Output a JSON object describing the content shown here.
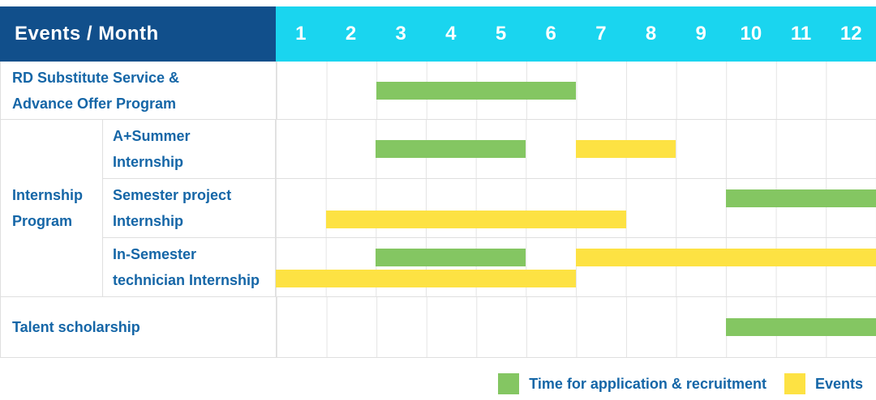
{
  "header": {
    "title": "Events / Month",
    "months": [
      "1",
      "2",
      "3",
      "4",
      "5",
      "6",
      "7",
      "8",
      "9",
      "10",
      "11",
      "12"
    ]
  },
  "group": {
    "label": "Internship\nProgram"
  },
  "colors": {
    "header_bg": "#114F8B",
    "month_bg": "#1AD5EF",
    "green": "#84C662",
    "yellow": "#FDE243",
    "text_blue": "#1566A7",
    "grid_line": "#E4E4E4",
    "row_border": "#DFDFDF"
  },
  "legend": {
    "items": [
      {
        "key": "application",
        "color": "green",
        "label": "Time for application & recruitment"
      },
      {
        "key": "events",
        "color": "yellow",
        "label": "Events"
      }
    ]
  },
  "chart_data": {
    "type": "bar",
    "variant": "gantt",
    "title": "Events / Month",
    "xlabel": "Month",
    "x_ticks": [
      "1",
      "2",
      "3",
      "4",
      "5",
      "6",
      "7",
      "8",
      "9",
      "10",
      "11",
      "12"
    ],
    "x_range": [
      1,
      12
    ],
    "legend_position": "bottom-right",
    "series_legend": [
      "Time for application & recruitment",
      "Events"
    ],
    "rows": [
      {
        "label": "RD Substitute Service &\nAdvance Offer Program",
        "group": null,
        "bars": [
          {
            "series": "Time for application & recruitment",
            "color": "green",
            "start_month": 3,
            "end_month": 6,
            "lane": "center"
          }
        ]
      },
      {
        "label": "A+Summer\nInternship",
        "group": "Internship Program",
        "bars": [
          {
            "series": "Time for application & recruitment",
            "color": "green",
            "start_month": 3,
            "end_month": 5,
            "lane": "center"
          },
          {
            "series": "Events",
            "color": "yellow",
            "start_month": 7,
            "end_month": 8,
            "lane": "center"
          }
        ]
      },
      {
        "label": "Semester project\nInternship",
        "group": "Internship Program",
        "bars": [
          {
            "series": "Time for application & recruitment",
            "color": "green",
            "start_month": 10,
            "end_month": 12,
            "lane": "top"
          },
          {
            "series": "Events",
            "color": "yellow",
            "start_month": 2,
            "end_month": 7,
            "lane": "bottom"
          }
        ]
      },
      {
        "label": "In-Semester\ntechnician Internship",
        "group": "Internship Program",
        "bars": [
          {
            "series": "Time for application & recruitment",
            "color": "green",
            "start_month": 3,
            "end_month": 5,
            "lane": "top"
          },
          {
            "series": "Events",
            "color": "yellow",
            "start_month": 7,
            "end_month": 12,
            "lane": "top"
          },
          {
            "series": "Events",
            "color": "yellow",
            "start_month": 1,
            "end_month": 6,
            "lane": "bottom"
          }
        ]
      },
      {
        "label": "Talent scholarship",
        "group": null,
        "bars": [
          {
            "series": "Time for application & recruitment",
            "color": "green",
            "start_month": 10,
            "end_month": 12,
            "lane": "center"
          }
        ]
      }
    ]
  }
}
